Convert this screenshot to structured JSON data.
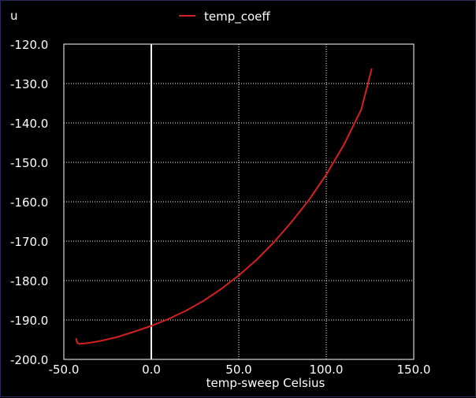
{
  "chart_data": {
    "type": "line",
    "ylabel": "u",
    "xlabel": "temp-sweep  Celsius",
    "xlim": [
      -50,
      150
    ],
    "ylim": [
      -200,
      -120
    ],
    "x_ticks": [
      -50,
      0,
      50,
      100,
      150
    ],
    "x_tick_labels": [
      "-50.0",
      "0.0",
      "50.0",
      "100.0",
      "150.0"
    ],
    "y_ticks": [
      -120,
      -130,
      -140,
      -150,
      -160,
      -170,
      -180,
      -190,
      -200
    ],
    "y_tick_labels": [
      "-120.0",
      "-130.0",
      "-140.0",
      "-150.0",
      "-160.0",
      "-170.0",
      "-180.0",
      "-190.0",
      "-200.0"
    ],
    "grid": true,
    "zero_line": true,
    "legend_position": "top-center",
    "series": [
      {
        "name": "temp_coeff",
        "color": "#d42020",
        "x": [
          -43,
          -42.5,
          -42,
          -41,
          -40,
          -37,
          -30,
          -20,
          -10,
          0,
          10,
          20,
          30,
          40,
          50,
          60,
          70,
          80,
          90,
          100,
          110,
          120,
          126
        ],
        "y": [
          -194.6,
          -195.6,
          -195.9,
          -196.1,
          -196.0,
          -195.9,
          -195.4,
          -194.4,
          -193.0,
          -191.5,
          -189.7,
          -187.6,
          -185.1,
          -182.1,
          -178.7,
          -174.8,
          -170.3,
          -165.2,
          -159.6,
          -153.1,
          -145.6,
          -136.6,
          -126.2
        ]
      }
    ]
  }
}
